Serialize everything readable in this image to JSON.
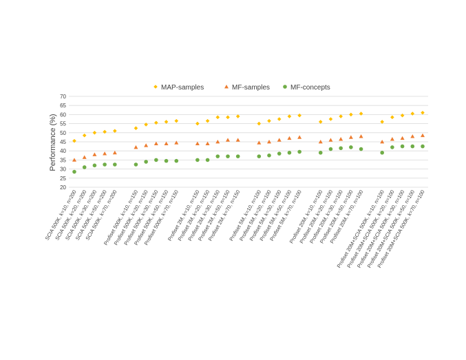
{
  "chart_data": {
    "type": "scatter",
    "title": "",
    "xlabel": "",
    "ylabel": "Performance (%)",
    "ylim": [
      20,
      70
    ],
    "yticks": [
      20,
      25,
      30,
      35,
      40,
      45,
      50,
      55,
      60,
      65,
      70
    ],
    "grid": true,
    "legend_position": "top",
    "categories": [
      "SCIA 500K, k=10, n=200",
      "SCIA 500K, k=20, n=200",
      "SCIA 500K, k=30, n=200",
      "SCIA 500K, k=50, n=200",
      "SCIA 500K, k=70, n=200",
      "Profiset 500K, k=10, n=150",
      "Profiset 500K, k=20, n=150",
      "Profiset 500K, k=30, n=150",
      "Profiset 500K, k=50, n=150",
      "Profiset 500K, k=70, n=150",
      "Profiset 2M, k=10, n=150",
      "Profiset 2M, k=20, n=150",
      "Profiset 2M, k=30, n=150",
      "Profiset 2M, k=50, n=150",
      "Profiset 2M, k=70, n=150",
      "Profiset 5M, k=10, n=100",
      "Profiset 5M, k=20, n=100",
      "Profiset 5M, k=30, n=100",
      "Profiset 5M, k=50, n=100",
      "Profiset 5M, k=70, n=100",
      "Profiset 20M, k=10, n=100",
      "Profiset 20M, k=20, n=100",
      "Profiset 20M, k=30, n=100",
      "Profiset 20M, k=50, n=100",
      "Profiset 20M, k=70, n=100",
      "Profiset 20M+SCIA 500K, k=10, n=100",
      "Profiset 20M+SCIA 500K, k=20, n=100",
      "Profiset 20M+SCIA 500K, k=30, n=100",
      "Profiset 20M+SCIA 500K, k=50, n=100",
      "Profiset 20M+SCIA 500K, k=70, n=100"
    ],
    "group_size": 5,
    "series": [
      {
        "name": "MAP-samples",
        "marker": "diamond",
        "color": "#FFC000",
        "values": [
          45.5,
          48.5,
          50,
          50.5,
          51,
          52.5,
          54.5,
          55.5,
          56,
          56.5,
          55,
          56.5,
          58.5,
          58.5,
          59,
          55,
          56.5,
          57.5,
          59,
          59.5,
          56,
          57.5,
          59,
          60,
          60.5,
          56,
          58.5,
          59.5,
          60.5,
          61
        ]
      },
      {
        "name": "MF-samples",
        "marker": "triangle",
        "color": "#ED7D31",
        "values": [
          35,
          36.5,
          38,
          38.5,
          39,
          42,
          43,
          44,
          44,
          44.5,
          44,
          44,
          45,
          46,
          46,
          44.5,
          45,
          46,
          47,
          47.5,
          45,
          46,
          46.5,
          47.5,
          48,
          45,
          46.5,
          47,
          48,
          48.5
        ]
      },
      {
        "name": "MF-concepts",
        "marker": "circle",
        "color": "#70AD47",
        "values": [
          28.5,
          31,
          32,
          32.5,
          32.5,
          32.5,
          34,
          35,
          34.5,
          34.5,
          35,
          35,
          37,
          37,
          37,
          37,
          37.5,
          38.5,
          39,
          39.5,
          39,
          41,
          41.5,
          42,
          41,
          39,
          42,
          42.5,
          42.5,
          42.5
        ]
      }
    ]
  }
}
